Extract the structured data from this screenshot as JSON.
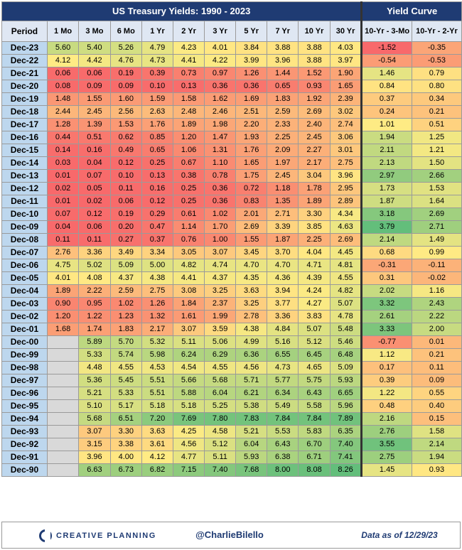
{
  "titles": {
    "main": "US Treasury Yields: 1990 - 2023",
    "curve": "Yield Curve"
  },
  "columns": {
    "period": "Period",
    "maturities": [
      "1 Mo",
      "3 Mo",
      "6 Mo",
      "1 Yr",
      "2 Yr",
      "3 Yr",
      "5 Yr",
      "7 Yr",
      "10 Yr",
      "30 Yr"
    ],
    "spreads": [
      "10-Yr - 3-Mo",
      "10-Yr - 2-Yr"
    ]
  },
  "footer": {
    "brand": "CREATIVE PLANNING",
    "handle": "@CharlieBilello",
    "as_of": "Data as of 12/29/23"
  },
  "chart_data": {
    "type": "table",
    "title": "US Treasury Yields: 1990 - 2023",
    "rows": [
      {
        "period": "Dec-23",
        "yields": [
          5.6,
          5.4,
          5.26,
          4.79,
          4.23,
          4.01,
          3.84,
          3.88,
          3.88,
          4.03
        ],
        "spreads": [
          -1.52,
          -0.35
        ]
      },
      {
        "period": "Dec-22",
        "yields": [
          4.12,
          4.42,
          4.76,
          4.73,
          4.41,
          4.22,
          3.99,
          3.96,
          3.88,
          3.97
        ],
        "spreads": [
          -0.54,
          -0.53
        ]
      },
      {
        "period": "Dec-21",
        "yields": [
          0.06,
          0.06,
          0.19,
          0.39,
          0.73,
          0.97,
          1.26,
          1.44,
          1.52,
          1.9
        ],
        "spreads": [
          1.46,
          0.79
        ]
      },
      {
        "period": "Dec-20",
        "yields": [
          0.08,
          0.09,
          0.09,
          0.1,
          0.13,
          0.36,
          0.36,
          0.65,
          0.93,
          1.65
        ],
        "spreads": [
          0.84,
          0.8
        ]
      },
      {
        "period": "Dec-19",
        "yields": [
          1.48,
          1.55,
          1.6,
          1.59,
          1.58,
          1.62,
          1.69,
          1.83,
          1.92,
          2.39
        ],
        "spreads": [
          0.37,
          0.34
        ]
      },
      {
        "period": "Dec-18",
        "yields": [
          2.44,
          2.45,
          2.56,
          2.63,
          2.48,
          2.46,
          2.51,
          2.59,
          2.69,
          3.02
        ],
        "spreads": [
          0.24,
          0.21
        ]
      },
      {
        "period": "Dec-17",
        "yields": [
          1.28,
          1.39,
          1.53,
          1.76,
          1.89,
          1.98,
          2.2,
          2.33,
          2.4,
          2.74
        ],
        "spreads": [
          1.01,
          0.51
        ]
      },
      {
        "period": "Dec-16",
        "yields": [
          0.44,
          0.51,
          0.62,
          0.85,
          1.2,
          1.47,
          1.93,
          2.25,
          2.45,
          3.06
        ],
        "spreads": [
          1.94,
          1.25
        ]
      },
      {
        "period": "Dec-15",
        "yields": [
          0.14,
          0.16,
          0.49,
          0.65,
          1.06,
          1.31,
          1.76,
          2.09,
          2.27,
          3.01
        ],
        "spreads": [
          2.11,
          1.21
        ]
      },
      {
        "period": "Dec-14",
        "yields": [
          0.03,
          0.04,
          0.12,
          0.25,
          0.67,
          1.1,
          1.65,
          1.97,
          2.17,
          2.75
        ],
        "spreads": [
          2.13,
          1.5
        ]
      },
      {
        "period": "Dec-13",
        "yields": [
          0.01,
          0.07,
          0.1,
          0.13,
          0.38,
          0.78,
          1.75,
          2.45,
          3.04,
          3.96
        ],
        "spreads": [
          2.97,
          2.66
        ]
      },
      {
        "period": "Dec-12",
        "yields": [
          0.02,
          0.05,
          0.11,
          0.16,
          0.25,
          0.36,
          0.72,
          1.18,
          1.78,
          2.95
        ],
        "spreads": [
          1.73,
          1.53
        ]
      },
      {
        "period": "Dec-11",
        "yields": [
          0.01,
          0.02,
          0.06,
          0.12,
          0.25,
          0.36,
          0.83,
          1.35,
          1.89,
          2.89
        ],
        "spreads": [
          1.87,
          1.64
        ]
      },
      {
        "period": "Dec-10",
        "yields": [
          0.07,
          0.12,
          0.19,
          0.29,
          0.61,
          1.02,
          2.01,
          2.71,
          3.3,
          4.34
        ],
        "spreads": [
          3.18,
          2.69
        ]
      },
      {
        "period": "Dec-09",
        "yields": [
          0.04,
          0.06,
          0.2,
          0.47,
          1.14,
          1.7,
          2.69,
          3.39,
          3.85,
          4.63
        ],
        "spreads": [
          3.79,
          2.71
        ]
      },
      {
        "period": "Dec-08",
        "yields": [
          0.11,
          0.11,
          0.27,
          0.37,
          0.76,
          1.0,
          1.55,
          1.87,
          2.25,
          2.69
        ],
        "spreads": [
          2.14,
          1.49
        ]
      },
      {
        "period": "Dec-07",
        "yields": [
          2.76,
          3.36,
          3.49,
          3.34,
          3.05,
          3.07,
          3.45,
          3.7,
          4.04,
          4.45
        ],
        "spreads": [
          0.68,
          0.99
        ]
      },
      {
        "period": "Dec-06",
        "yields": [
          4.75,
          5.02,
          5.09,
          5.0,
          4.82,
          4.74,
          4.7,
          4.7,
          4.71,
          4.81
        ],
        "spreads": [
          -0.31,
          -0.11
        ]
      },
      {
        "period": "Dec-05",
        "yields": [
          4.01,
          4.08,
          4.37,
          4.38,
          4.41,
          4.37,
          4.35,
          4.36,
          4.39,
          4.55
        ],
        "spreads": [
          0.31,
          -0.02
        ]
      },
      {
        "period": "Dec-04",
        "yields": [
          1.89,
          2.22,
          2.59,
          2.75,
          3.08,
          3.25,
          3.63,
          3.94,
          4.24,
          4.82
        ],
        "spreads": [
          2.02,
          1.16
        ]
      },
      {
        "period": "Dec-03",
        "yields": [
          0.9,
          0.95,
          1.02,
          1.26,
          1.84,
          2.37,
          3.25,
          3.77,
          4.27,
          5.07
        ],
        "spreads": [
          3.32,
          2.43
        ]
      },
      {
        "period": "Dec-02",
        "yields": [
          1.2,
          1.22,
          1.23,
          1.32,
          1.61,
          1.99,
          2.78,
          3.36,
          3.83,
          4.78
        ],
        "spreads": [
          2.61,
          2.22
        ]
      },
      {
        "period": "Dec-01",
        "yields": [
          1.68,
          1.74,
          1.83,
          2.17,
          3.07,
          3.59,
          4.38,
          4.84,
          5.07,
          5.48
        ],
        "spreads": [
          3.33,
          2.0
        ]
      },
      {
        "period": "Dec-00",
        "yields": [
          null,
          5.89,
          5.7,
          5.32,
          5.11,
          5.06,
          4.99,
          5.16,
          5.12,
          5.46
        ],
        "spreads": [
          -0.77,
          0.01
        ]
      },
      {
        "period": "Dec-99",
        "yields": [
          null,
          5.33,
          5.74,
          5.98,
          6.24,
          6.29,
          6.36,
          6.55,
          6.45,
          6.48
        ],
        "spreads": [
          1.12,
          0.21
        ]
      },
      {
        "period": "Dec-98",
        "yields": [
          null,
          4.48,
          4.55,
          4.53,
          4.54,
          4.55,
          4.56,
          4.73,
          4.65,
          5.09
        ],
        "spreads": [
          0.17,
          0.11
        ]
      },
      {
        "period": "Dec-97",
        "yields": [
          null,
          5.36,
          5.45,
          5.51,
          5.66,
          5.68,
          5.71,
          5.77,
          5.75,
          5.93
        ],
        "spreads": [
          0.39,
          0.09
        ]
      },
      {
        "period": "Dec-96",
        "yields": [
          null,
          5.21,
          5.33,
          5.51,
          5.88,
          6.04,
          6.21,
          6.34,
          6.43,
          6.65
        ],
        "spreads": [
          1.22,
          0.55
        ]
      },
      {
        "period": "Dec-95",
        "yields": [
          null,
          5.1,
          5.17,
          5.18,
          5.18,
          5.25,
          5.38,
          5.49,
          5.58,
          5.96
        ],
        "spreads": [
          0.48,
          0.4
        ]
      },
      {
        "period": "Dec-94",
        "yields": [
          null,
          5.68,
          6.51,
          7.2,
          7.69,
          7.8,
          7.83,
          7.84,
          7.84,
          7.89
        ],
        "spreads": [
          2.16,
          0.15
        ]
      },
      {
        "period": "Dec-93",
        "yields": [
          null,
          3.07,
          3.3,
          3.63,
          4.25,
          4.58,
          5.21,
          5.53,
          5.83,
          6.35
        ],
        "spreads": [
          2.76,
          1.58
        ]
      },
      {
        "period": "Dec-92",
        "yields": [
          null,
          3.15,
          3.38,
          3.61,
          4.56,
          5.12,
          6.04,
          6.43,
          6.7,
          7.4
        ],
        "spreads": [
          3.55,
          2.14
        ]
      },
      {
        "period": "Dec-91",
        "yields": [
          null,
          3.96,
          4.0,
          4.12,
          4.77,
          5.11,
          5.93,
          6.38,
          6.71,
          7.41
        ],
        "spreads": [
          2.75,
          1.94
        ]
      },
      {
        "period": "Dec-90",
        "yields": [
          null,
          6.63,
          6.73,
          6.82,
          7.15,
          7.4,
          7.68,
          8.0,
          8.08,
          8.26
        ],
        "spreads": [
          1.45,
          0.93
        ]
      }
    ]
  }
}
